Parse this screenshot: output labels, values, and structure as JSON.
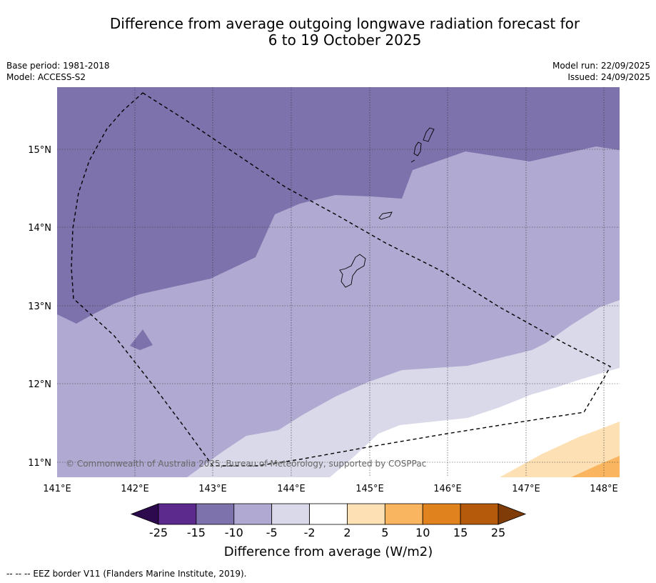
{
  "title": {
    "line1": "Difference from average outgoing longwave radiation forecast for",
    "line2": "6 to 19 October 2025"
  },
  "meta": {
    "base_period": "Base period: 1981-2018",
    "model": "Model: ACCESS-S2",
    "model_run": "Model run: 22/09/2025",
    "issued": "Issued: 24/09/2025"
  },
  "map": {
    "copyright": "© Commonwealth of Australia 2025, Bureau of Meteorology, supported by COSPPac",
    "lat_labels": [
      "15°N",
      "14°N",
      "13°N",
      "12°N",
      "11°N"
    ],
    "lon_labels": [
      "141°E",
      "142°E",
      "143°E",
      "144°E",
      "145°E",
      "146°E",
      "147°E",
      "148°E"
    ]
  },
  "colorbar": {
    "title": "Difference from average (W/m2)",
    "ticks": [
      "-25",
      "-15",
      "-10",
      "-5",
      "-2",
      "2",
      "5",
      "10",
      "15",
      "25"
    ],
    "colors": {
      "extend_low": "#2d0a4e",
      "bins": [
        "#5b2a8c",
        "#7e72ac",
        "#b0a9d1",
        "#d9d9ea",
        "#ffffff",
        "#fde0b4",
        "#f9b55f",
        "#e0821d",
        "#b45a0a"
      ],
      "extend_high": "#7f3b08"
    }
  },
  "footnote": "--  --  -- EEZ border V11 (Flanders Marine Institute, 2019)."
}
